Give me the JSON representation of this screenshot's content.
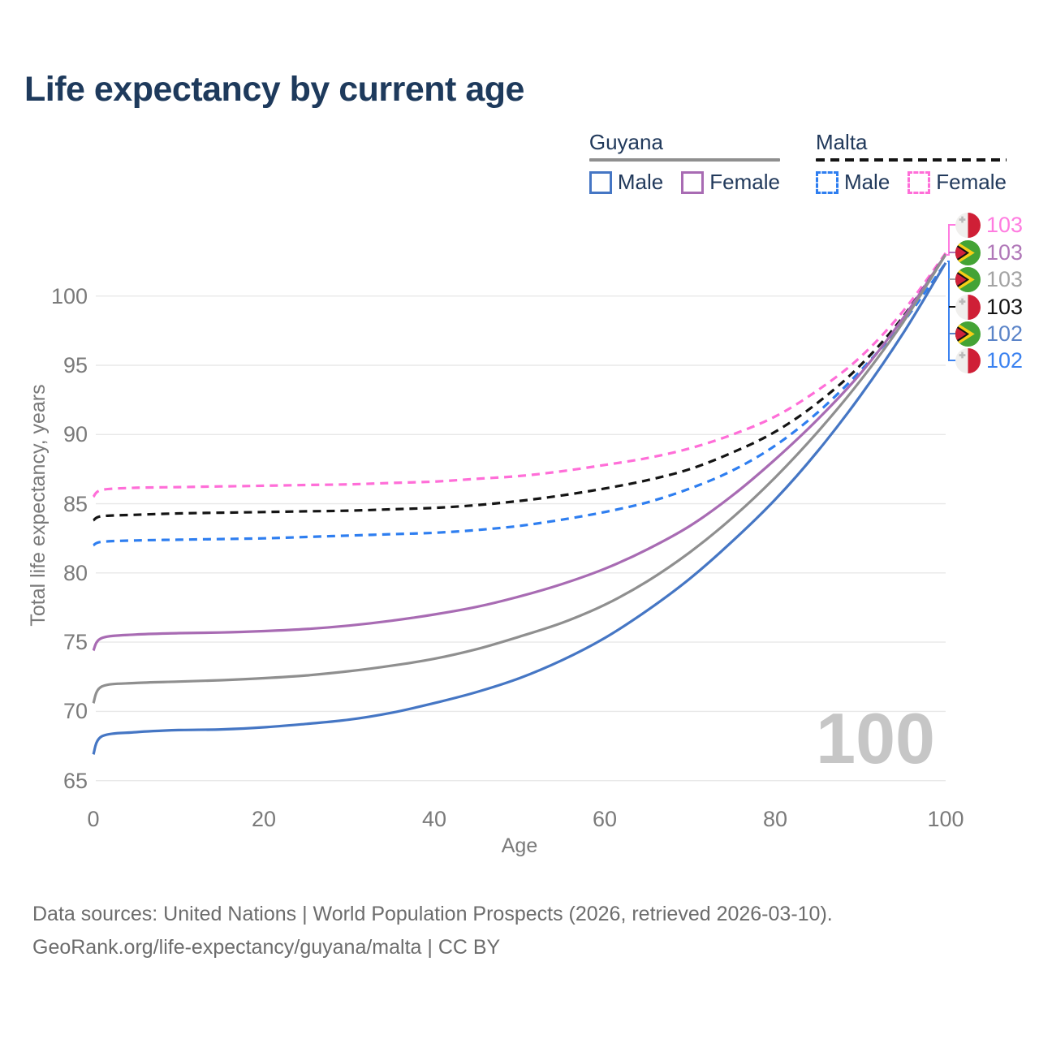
{
  "title": "Life expectancy by current age",
  "watermark": "100",
  "axes": {
    "x_label": "Age",
    "y_label": "Total life expectancy, years",
    "x_ticks": [
      0,
      20,
      40,
      60,
      80,
      100
    ],
    "y_ticks": [
      65,
      70,
      75,
      80,
      85,
      90,
      95,
      100
    ]
  },
  "legend": {
    "groups": [
      {
        "country": "Guyana",
        "line_style": "solid",
        "line_color": "#8f8f8f",
        "items": [
          {
            "label": "Male",
            "color": "#4576c4",
            "dashed": false
          },
          {
            "label": "Female",
            "color": "#a86bb3",
            "dashed": false
          }
        ]
      },
      {
        "country": "Malta",
        "line_style": "dashed",
        "line_color": "#141414",
        "items": [
          {
            "label": "Male",
            "color": "#2e7ef0",
            "dashed": true
          },
          {
            "label": "Female",
            "color": "#ff6ed8",
            "dashed": true
          }
        ]
      }
    ]
  },
  "chart_data": {
    "type": "line",
    "title": "Life expectancy by current age",
    "xlabel": "Age",
    "ylabel": "Total life expectancy, years",
    "xlim": [
      0,
      100
    ],
    "ylim": [
      63,
      104
    ],
    "grid": true,
    "x": [
      0,
      1,
      5,
      10,
      15,
      20,
      25,
      30,
      35,
      40,
      45,
      50,
      55,
      60,
      65,
      70,
      75,
      80,
      85,
      90,
      95,
      100
    ],
    "series": [
      {
        "name": "Malta Female",
        "country": "Malta",
        "sex": "female",
        "style": "dashed",
        "color": "#ff6ed8",
        "values": [
          85.5,
          86.0,
          86.15,
          86.2,
          86.25,
          86.3,
          86.35,
          86.4,
          86.5,
          86.6,
          86.8,
          87.0,
          87.35,
          87.8,
          88.3,
          89.0,
          90.0,
          91.3,
          93.2,
          95.6,
          98.9,
          103.1
        ]
      },
      {
        "name": "Malta Total",
        "country": "Malta",
        "sex": "both",
        "style": "dashed",
        "color": "#141414",
        "values": [
          83.8,
          84.1,
          84.2,
          84.3,
          84.35,
          84.4,
          84.45,
          84.5,
          84.6,
          84.7,
          84.9,
          85.2,
          85.6,
          86.1,
          86.7,
          87.5,
          88.7,
          90.2,
          92.3,
          95.0,
          98.5,
          103.0
        ]
      },
      {
        "name": "Malta Male",
        "country": "Malta",
        "sex": "male",
        "style": "dashed",
        "color": "#2e7ef0",
        "values": [
          82.0,
          82.25,
          82.35,
          82.4,
          82.45,
          82.5,
          82.6,
          82.7,
          82.8,
          82.9,
          83.1,
          83.4,
          83.85,
          84.4,
          85.1,
          86.1,
          87.4,
          89.2,
          91.6,
          94.6,
          98.1,
          102.4
        ]
      },
      {
        "name": "Guyana Female",
        "country": "Guyana",
        "sex": "female",
        "style": "solid",
        "color": "#a86bb3",
        "values": [
          74.4,
          75.3,
          75.55,
          75.65,
          75.7,
          75.8,
          75.95,
          76.2,
          76.55,
          77.0,
          77.55,
          78.3,
          79.2,
          80.3,
          81.7,
          83.4,
          85.6,
          88.2,
          91.1,
          94.4,
          98.4,
          103.0
        ]
      },
      {
        "name": "Guyana Total",
        "country": "Guyana",
        "sex": "both",
        "style": "solid",
        "color": "#8f8f8f",
        "values": [
          70.6,
          71.8,
          72.05,
          72.15,
          72.25,
          72.4,
          72.6,
          72.9,
          73.3,
          73.8,
          74.5,
          75.4,
          76.4,
          77.7,
          79.4,
          81.5,
          84.0,
          86.9,
          90.2,
          93.9,
          98.1,
          103.0
        ]
      },
      {
        "name": "Guyana Male",
        "country": "Guyana",
        "sex": "male",
        "style": "solid",
        "color": "#4576c4",
        "values": [
          66.9,
          68.2,
          68.5,
          68.65,
          68.7,
          68.85,
          69.1,
          69.4,
          69.9,
          70.6,
          71.4,
          72.4,
          73.7,
          75.3,
          77.3,
          79.6,
          82.3,
          85.3,
          88.8,
          92.8,
          97.3,
          102.4
        ]
      }
    ],
    "end_labels": [
      {
        "text": "103",
        "country": "Malta",
        "series": "Malta Female",
        "color": "#ff7ce0"
      },
      {
        "text": "103",
        "country": "Guyana",
        "series": "Guyana Female",
        "color": "#b077b8"
      },
      {
        "text": "103",
        "country": "Guyana",
        "series": "Guyana Total",
        "color": "#a3a3a3"
      },
      {
        "text": "103",
        "country": "Malta",
        "series": "Malta Total",
        "color": "#141414"
      },
      {
        "text": "102",
        "country": "Guyana",
        "series": "Guyana Male",
        "color": "#5b84c8"
      },
      {
        "text": "102",
        "country": "Malta",
        "series": "Malta Male",
        "color": "#3b82f0"
      }
    ]
  },
  "footer": {
    "line1": "Data sources: United Nations | World Population Prospects (2026, retrieved 2026-03-10).",
    "line2": "GeoRank.org/life-expectancy/guyana/malta | CC BY"
  }
}
